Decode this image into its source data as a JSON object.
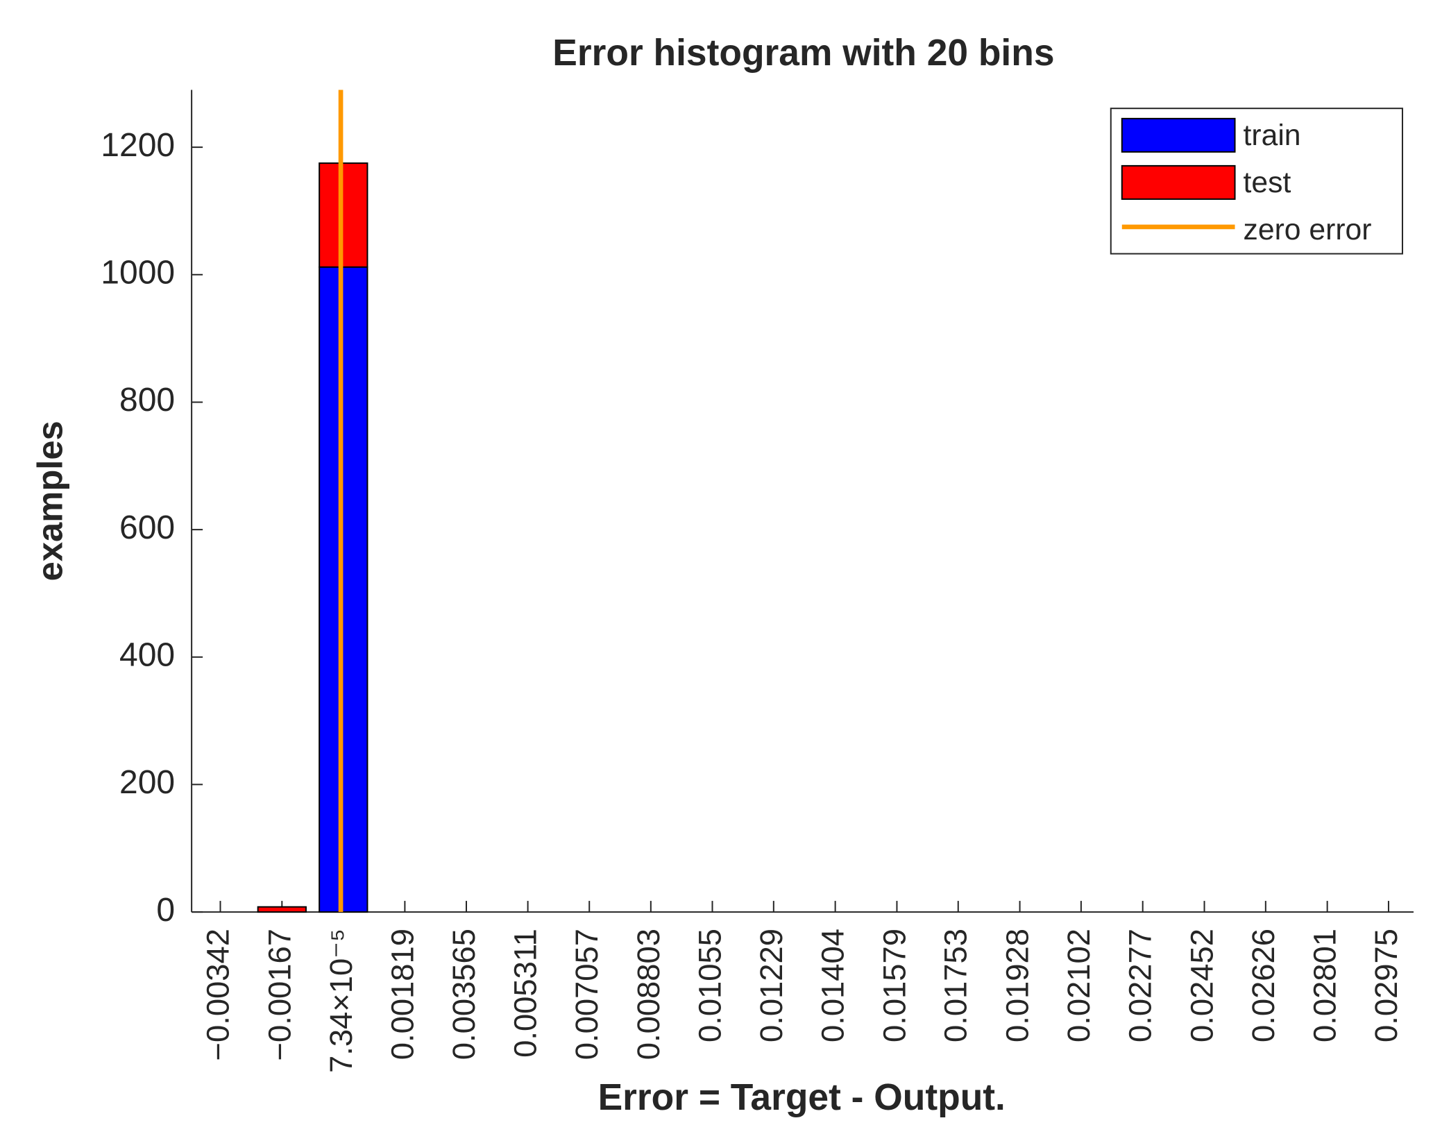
{
  "chart_data": {
    "type": "bar",
    "title": "Error histogram with 20 bins",
    "xlabel": "Error = Target - Output.",
    "ylabel": "examples",
    "stacked": true,
    "x": [
      -0.00342,
      -0.00167,
      7.34e-05,
      0.001819,
      0.003565,
      0.005311,
      0.007057,
      0.008803,
      0.01055,
      0.01229,
      0.01404,
      0.01579,
      0.01753,
      0.01928,
      0.02102,
      0.02277,
      0.02452,
      0.02626,
      0.02801,
      0.02975
    ],
    "xticks": [
      {
        "value": -0.00342,
        "label": "−0.00342"
      },
      {
        "value": -0.00167,
        "label": "−0.00167"
      },
      {
        "value": 7.34e-05,
        "label": "7.34×10⁻⁵"
      },
      0.001819,
      0.003565,
      0.005311,
      0.007057,
      0.008803,
      0.01055,
      0.01229,
      0.01404,
      0.01579,
      0.01753,
      0.01928,
      0.02102,
      0.02277,
      0.02452,
      0.02626,
      0.02801,
      0.02975
    ],
    "xlim": [
      -0.004235,
      0.03046
    ],
    "ylim": [
      0,
      1290
    ],
    "yticks": [
      0,
      200,
      400,
      600,
      800,
      1000,
      1200
    ],
    "series": [
      {
        "name": "train",
        "color": "#0000ff",
        "values": [
          0,
          0,
          1012,
          0,
          0,
          0,
          0,
          0,
          0,
          0,
          0,
          0,
          0,
          0,
          0,
          0,
          0,
          0,
          0,
          0
        ]
      },
      {
        "name": "test",
        "color": "#ff0000",
        "values": [
          0,
          8,
          163,
          0,
          0,
          0,
          0,
          0,
          0,
          0,
          0,
          0,
          0,
          0,
          0,
          0,
          0,
          0,
          0,
          0
        ]
      }
    ],
    "zero_line": {
      "name": "zero error",
      "color": "#ff9900",
      "x": 0
    },
    "legend": "top-right"
  }
}
